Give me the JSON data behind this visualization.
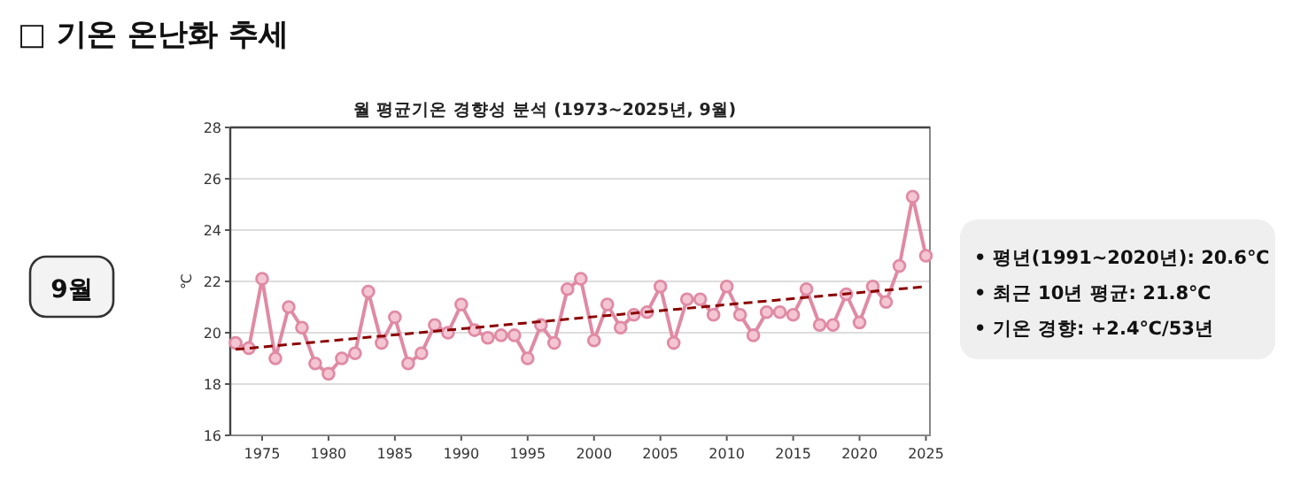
{
  "chart_data": {
    "type": "line",
    "title": "월 평균기온 경향성 분석 (1973~2025년, 9월)",
    "ylabel": "℃",
    "annotations": [
      "□ 기온 온난화 추세",
      "9월",
      "• 평년(1991~2020년): 20.6℃",
      "• 최근 10년 평균: 21.8℃",
      "• 기온 경향: +2.4℃/53년"
    ],
    "x": [
      1973,
      1974,
      1975,
      1976,
      1977,
      1978,
      1979,
      1980,
      1981,
      1982,
      1983,
      1984,
      1985,
      1986,
      1987,
      1988,
      1989,
      1990,
      1991,
      1992,
      1993,
      1994,
      1995,
      1996,
      1997,
      1998,
      1999,
      2000,
      2001,
      2002,
      2003,
      2004,
      2005,
      2006,
      2007,
      2008,
      2009,
      2010,
      2011,
      2012,
      2013,
      2014,
      2015,
      2016,
      2017,
      2018,
      2019,
      2020,
      2021,
      2022,
      2023,
      2024,
      2025
    ],
    "series": [
      {
        "color": "#e08aa4",
        "marker": "circle",
        "line_style": "solid",
        "values": [
          19.6,
          19.4,
          22.1,
          19.0,
          21.0,
          20.2,
          18.8,
          18.4,
          19.0,
          19.2,
          21.6,
          19.6,
          20.6,
          18.8,
          19.2,
          20.3,
          20.0,
          21.1,
          20.1,
          19.8,
          19.9,
          19.9,
          19.0,
          20.3,
          19.6,
          21.7,
          22.1,
          19.7,
          21.1,
          20.2,
          20.7,
          20.8,
          21.8,
          19.6,
          21.3,
          21.3,
          20.7,
          21.8,
          20.7,
          19.9,
          20.8,
          20.8,
          20.7,
          21.7,
          20.3,
          20.3,
          21.5,
          20.4,
          21.8,
          21.2,
          22.6,
          25.3,
          23.0
        ]
      },
      {
        "type": "line",
        "color": "#8b0000",
        "marker": "none",
        "line_style": "dashed",
        "x": [
          1973,
          2025
        ],
        "values": [
          19.35,
          21.8
        ]
      }
    ],
    "xlim": [
      1972.6,
      2025.3
    ],
    "ylim": [
      16,
      28
    ],
    "xticks": [
      1975,
      1980,
      1985,
      1990,
      1995,
      2000,
      2005,
      2010,
      2015,
      2020,
      2025
    ],
    "yticks": [
      16,
      18,
      20,
      22,
      24,
      26,
      28
    ],
    "grid": "y"
  }
}
